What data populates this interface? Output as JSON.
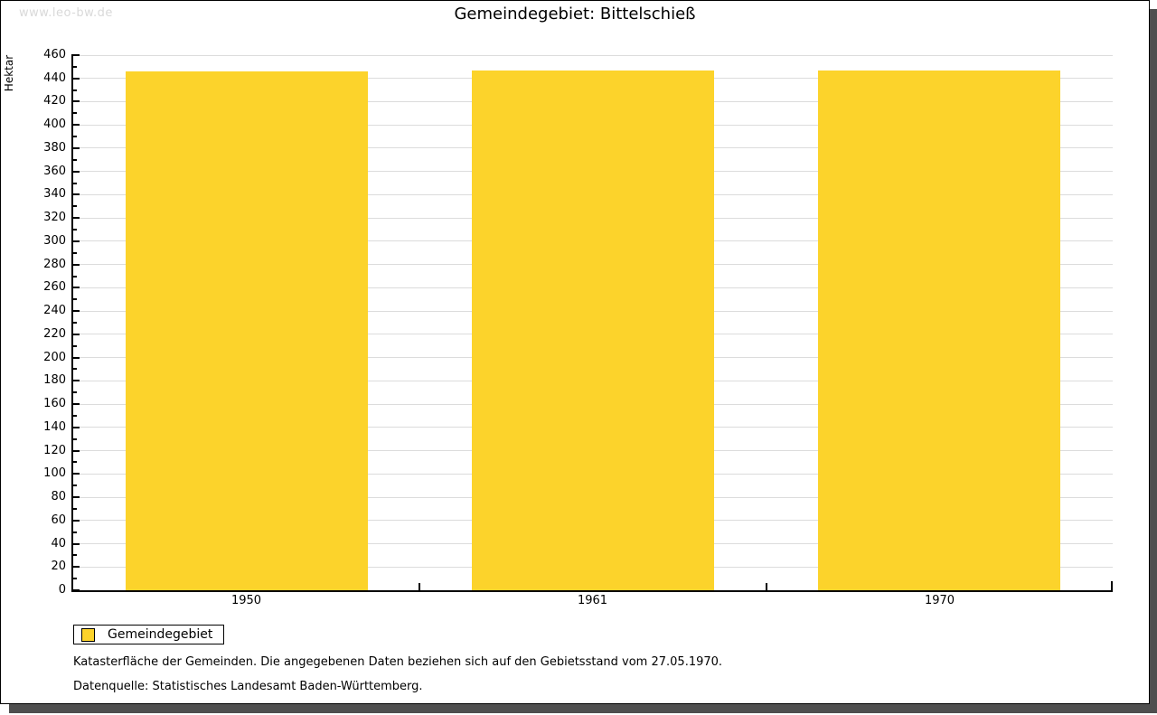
{
  "watermark": "www.leo-bw.de",
  "header": {
    "title": "Gemeindegebiet: Bittelschieß"
  },
  "chart_data": {
    "type": "bar",
    "title": "Gemeindegebiet: Bittelschieß",
    "xlabel": "",
    "ylabel": "Hektar",
    "categories": [
      "1950",
      "1961",
      "1970"
    ],
    "series": [
      {
        "name": "Gemeindegebiet",
        "values": [
          446,
          447,
          447
        ]
      }
    ],
    "ylim": [
      0,
      460
    ],
    "ytick_step": 20,
    "yminor_step": 10,
    "grid": true,
    "bar_color": "#fcd32b",
    "legend_position": "bottom-left"
  },
  "legend": {
    "label": "Gemeindegebiet",
    "swatch_color": "#fcd32b"
  },
  "footnotes": {
    "line1": "Katasterfläche der Gemeinden. Die angegebenen Daten beziehen sich auf den Gebietsstand vom 27.05.1970.",
    "line2": "Datenquelle: Statistisches Landesamt Baden-Württemberg."
  },
  "colors": {
    "bar": "#fcd32b",
    "gridline": "#dcdcdc",
    "axis": "#000000",
    "watermark": "#d9d9d9",
    "shadow": "#4f4f4f",
    "background": "#ffffff"
  }
}
